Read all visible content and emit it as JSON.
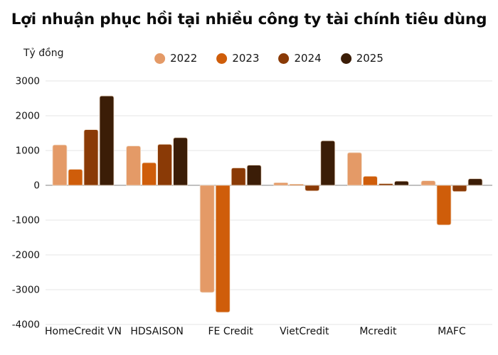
{
  "title": "Lợi nhuận phục hồi tại nhiều công ty tài chính tiêu dùng",
  "unit_label": "Tỷ đồng",
  "chart_data": {
    "type": "bar",
    "title": "Lợi nhuận phục hồi tại nhiều công ty tài chính tiêu dùng",
    "ylabel": "Tỷ đồng",
    "xlabel": "",
    "categories": [
      "HomeCredit VN",
      "HDSAISON",
      "FE Credit",
      "VietCredit",
      "Mcredit",
      "MAFC"
    ],
    "series": [
      {
        "name": "2022",
        "color": "#E49A67",
        "values": [
          1160,
          1130,
          -3080,
          75,
          940,
          130
        ]
      },
      {
        "name": "2023",
        "color": "#CF5D0A",
        "values": [
          460,
          650,
          -3650,
          30,
          260,
          -1140
        ]
      },
      {
        "name": "2024",
        "color": "#8A3A06",
        "values": [
          1600,
          1180,
          500,
          -160,
          50,
          -180
        ]
      },
      {
        "name": "2025",
        "color": "#3B1D07",
        "values": [
          2570,
          1370,
          580,
          1280,
          120,
          190
        ]
      }
    ],
    "yticks": [
      3000,
      2000,
      1000,
      0,
      -1000,
      -2000,
      -3000,
      -4000
    ],
    "ylim": [
      -4000,
      3000
    ],
    "grid": true,
    "legend_position": "top"
  },
  "colors": {
    "background": "#FFFFFF",
    "grid": "#E6E6E6",
    "zero_line": "#9B9B9B",
    "text": "#111111"
  }
}
